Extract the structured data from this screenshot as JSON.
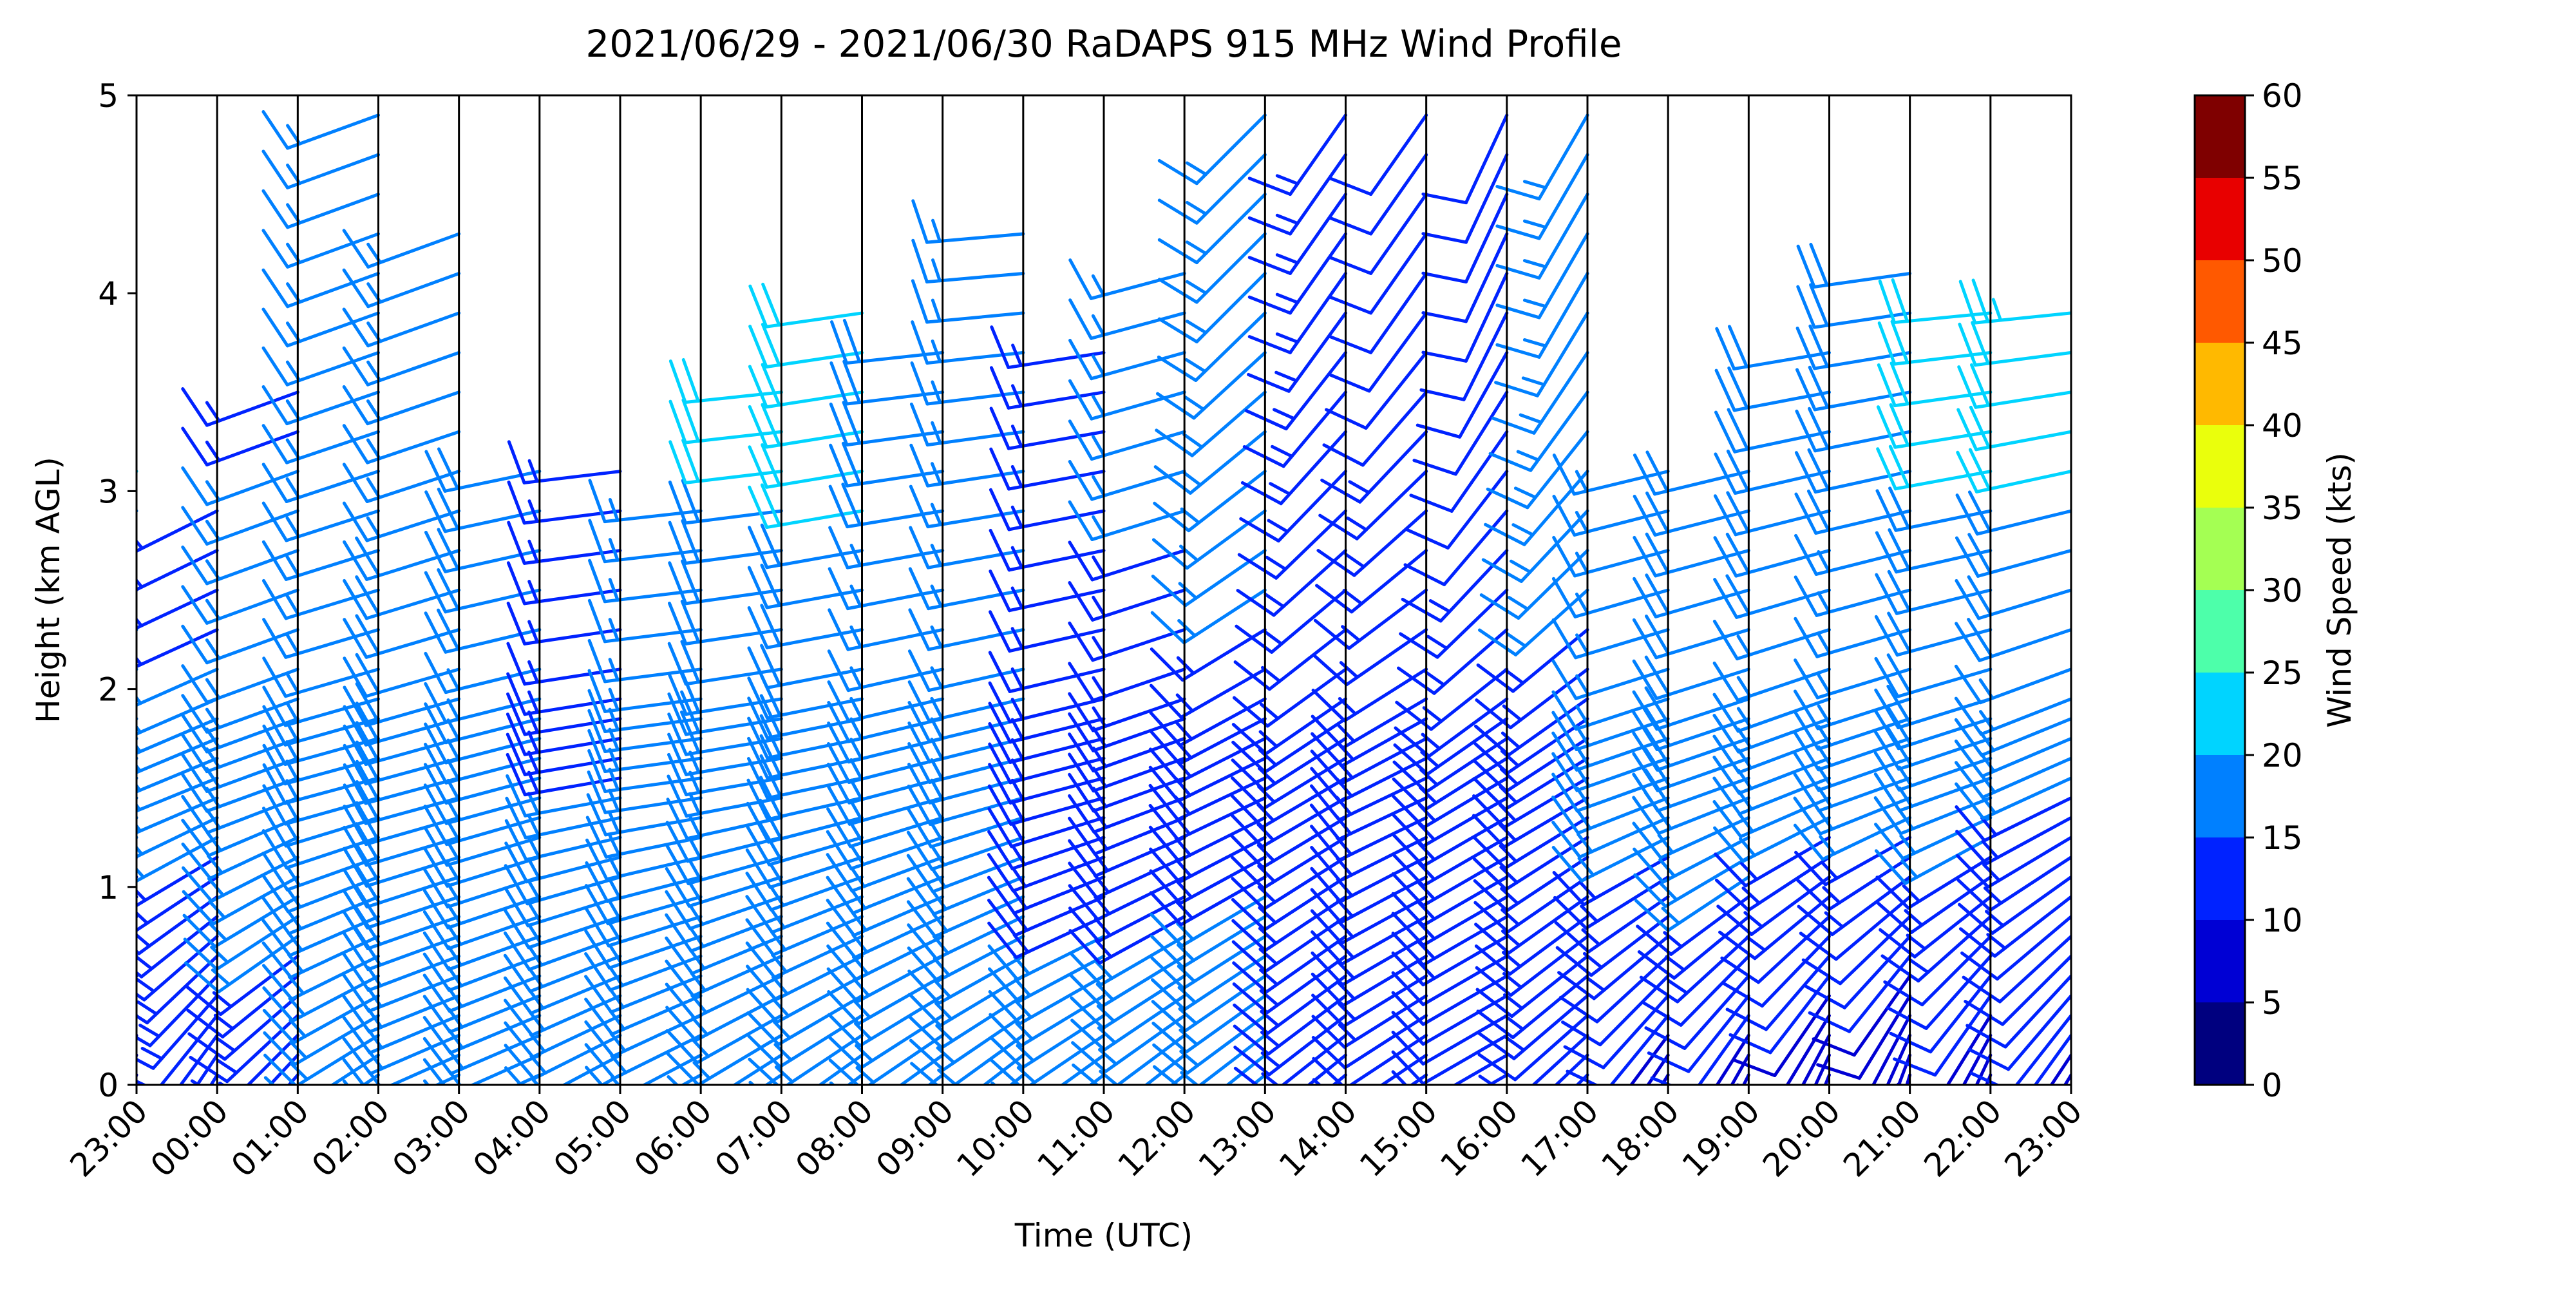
{
  "chart_data": {
    "type": "wind_barb",
    "title": "2021/06/29 - 2021/06/30 RaDAPS 915 MHz Wind Profile",
    "xlabel": "Time (UTC)",
    "ylabel": "Height (km AGL)",
    "x_tick_labels": [
      "23:00",
      "00:00",
      "01:00",
      "02:00",
      "03:00",
      "04:00",
      "05:00",
      "06:00",
      "07:00",
      "08:00",
      "09:00",
      "10:00",
      "11:00",
      "12:00",
      "13:00",
      "14:00",
      "15:00",
      "16:00",
      "17:00",
      "18:00",
      "19:00",
      "20:00",
      "21:00",
      "22:00",
      "23:00"
    ],
    "y_ticks": [
      0,
      1,
      2,
      3,
      4,
      5
    ],
    "ylim": [
      0,
      5
    ],
    "height_levels_km": [
      0.05,
      0.15,
      0.25,
      0.35,
      0.45,
      0.55,
      0.65,
      0.75,
      0.85,
      0.95,
      1.05,
      1.15,
      1.25,
      1.35,
      1.45,
      1.55,
      1.65,
      1.75,
      1.85,
      1.95,
      2.1,
      2.3,
      2.5,
      2.7,
      2.9,
      3.1,
      3.3,
      3.5,
      3.7,
      3.9,
      4.1,
      4.3,
      4.5,
      4.7,
      4.9
    ],
    "colorbar": {
      "label": "Wind Speed (kts)",
      "ticks": [
        0,
        5,
        10,
        15,
        20,
        25,
        30,
        35,
        40,
        45,
        50,
        55,
        60
      ],
      "colors": [
        "#00007f",
        "#0000d4",
        "#0022ff",
        "#0080ff",
        "#00d4ff",
        "#4dffaa",
        "#a4ff53",
        "#eaff0c",
        "#ffb900",
        "#ff5900",
        "#e80000",
        "#7f0000"
      ]
    },
    "profiles": [
      {
        "time": "23:00",
        "top_km": 3.2,
        "low_speed": 8,
        "low_dir": 200,
        "mid_speed": 17,
        "mid_dir": 245,
        "upper_speed": 22,
        "upper_dir": 230
      },
      {
        "time": "00:00",
        "top_km": 2.9,
        "low_speed": 11,
        "low_dir": 210,
        "mid_speed": 16,
        "mid_dir": 248,
        "upper_speed": 12,
        "upper_dir": 240
      },
      {
        "time": "01:00",
        "top_km": 3.5,
        "low_speed": 13,
        "low_dir": 220,
        "mid_speed": 17,
        "mid_dir": 250,
        "upper_speed": 14,
        "upper_dir": 250
      },
      {
        "time": "02:00",
        "top_km": 4.9,
        "low_speed": 15,
        "low_dir": 235,
        "mid_speed": 17,
        "mid_dir": 255,
        "upper_speed": 16,
        "upper_dir": 250
      },
      {
        "time": "03:00",
        "top_km": 4.4,
        "low_speed": 17,
        "low_dir": 245,
        "mid_speed": 18,
        "mid_dir": 255,
        "upper_speed": 17,
        "upper_dir": 250
      },
      {
        "time": "04:00",
        "top_km": 3.2,
        "low_speed": 16,
        "low_dir": 245,
        "mid_speed": 17,
        "mid_dir": 255,
        "upper_speed": 19,
        "upper_dir": 260
      },
      {
        "time": "05:00",
        "top_km": 3.2,
        "low_speed": 15,
        "low_dir": 240,
        "mid_speed": 15,
        "mid_dir": 260,
        "upper_speed": 14,
        "upper_dir": 265
      },
      {
        "time": "06:00",
        "top_km": 2.9,
        "low_speed": 17,
        "low_dir": 240,
        "mid_speed": 16,
        "mid_dir": 262,
        "upper_speed": 16,
        "upper_dir": 265
      },
      {
        "time": "07:00",
        "top_km": 3.5,
        "low_speed": 17,
        "low_dir": 235,
        "mid_speed": 17,
        "mid_dir": 260,
        "upper_speed": 22,
        "upper_dir": 265
      },
      {
        "time": "08:00",
        "top_km": 4.0,
        "low_speed": 15,
        "low_dir": 232,
        "mid_speed": 18,
        "mid_dir": 258,
        "upper_speed": 22,
        "upper_dir": 262
      },
      {
        "time": "09:00",
        "top_km": 3.8,
        "low_speed": 16,
        "low_dir": 232,
        "mid_speed": 17,
        "mid_dir": 255,
        "upper_speed": 18,
        "upper_dir": 265
      },
      {
        "time": "10:00",
        "top_km": 4.3,
        "low_speed": 16,
        "low_dir": 230,
        "mid_speed": 15,
        "mid_dir": 255,
        "upper_speed": 15,
        "upper_dir": 265
      },
      {
        "time": "11:00",
        "top_km": 3.8,
        "low_speed": 16,
        "low_dir": 232,
        "mid_speed": 14,
        "mid_dir": 255,
        "upper_speed": 15,
        "upper_dir": 262
      },
      {
        "time": "12:00",
        "top_km": 4.1,
        "low_speed": 16,
        "low_dir": 230,
        "mid_speed": 14,
        "mid_dir": 250,
        "upper_speed": 16,
        "upper_dir": 255
      },
      {
        "time": "13:00",
        "top_km": 5.0,
        "low_speed": 17,
        "low_dir": 230,
        "mid_speed": 14,
        "mid_dir": 245,
        "upper_speed": 17,
        "upper_dir": 225
      },
      {
        "time": "14:00",
        "top_km": 5.0,
        "low_speed": 13,
        "low_dir": 230,
        "mid_speed": 13,
        "mid_dir": 240,
        "upper_speed": 13,
        "upper_dir": 215
      },
      {
        "time": "15:00",
        "top_km": 5.0,
        "low_speed": 12,
        "low_dir": 235,
        "mid_speed": 14,
        "mid_dir": 245,
        "upper_speed": 12,
        "upper_dir": 215
      },
      {
        "time": "16:00",
        "top_km": 5.0,
        "low_speed": 12,
        "low_dir": 240,
        "mid_speed": 13,
        "mid_dir": 240,
        "upper_speed": 12,
        "upper_dir": 205
      },
      {
        "time": "17:00",
        "top_km": 5.0,
        "low_speed": 12,
        "low_dir": 225,
        "mid_speed": 14,
        "mid_dir": 240,
        "upper_speed": 17,
        "upper_dir": 210
      },
      {
        "time": "18:00",
        "top_km": 3.2,
        "low_speed": 8,
        "low_dir": 210,
        "mid_speed": 17,
        "mid_dir": 250,
        "upper_speed": 17,
        "upper_dir": 260
      },
      {
        "time": "19:00",
        "top_km": 3.2,
        "low_speed": 8,
        "low_dir": 205,
        "mid_speed": 18,
        "mid_dir": 250,
        "upper_speed": 19,
        "upper_dir": 260
      },
      {
        "time": "20:00",
        "top_km": 3.8,
        "low_speed": 7,
        "low_dir": 200,
        "mid_speed": 16,
        "mid_dir": 248,
        "upper_speed": 20,
        "upper_dir": 262
      },
      {
        "time": "21:00",
        "top_km": 4.1,
        "low_speed": 6,
        "low_dir": 195,
        "mid_speed": 16,
        "mid_dir": 250,
        "upper_speed": 19,
        "upper_dir": 262
      },
      {
        "time": "22:00",
        "top_km": 4.0,
        "low_speed": 7,
        "low_dir": 200,
        "mid_speed": 17,
        "mid_dir": 250,
        "upper_speed": 22,
        "upper_dir": 265
      },
      {
        "time": "23:00",
        "top_km": 3.9,
        "low_speed": 9,
        "low_dir": 210,
        "mid_speed": 15,
        "mid_dir": 245,
        "upper_speed": 23,
        "upper_dir": 265
      }
    ]
  }
}
